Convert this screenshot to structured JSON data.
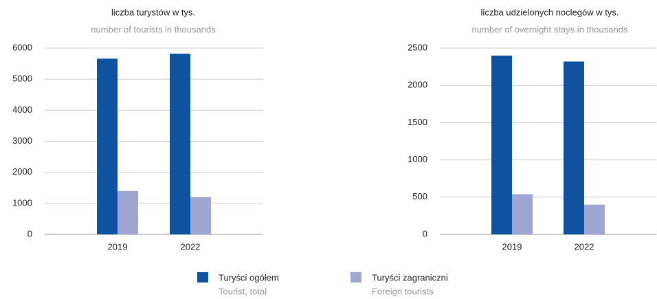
{
  "chart_data": [
    {
      "type": "bar",
      "title": "liczba turystów w tys.",
      "subtitle": "number of tourists in thousands",
      "categories": [
        "2019",
        "2022"
      ],
      "series": [
        {
          "name": "Turyści ogółem",
          "name_en": "Tourist, total",
          "color": "#0f52a0",
          "values": [
            5660,
            5820
          ]
        },
        {
          "name": "Turyści zagraniczni",
          "name_en": "Foreign tourists",
          "color": "#a0a6d2",
          "values": [
            1400,
            1200
          ]
        }
      ],
      "ylim": [
        0,
        6000
      ],
      "yticks": [
        0,
        1000,
        2000,
        3000,
        4000,
        5000,
        6000
      ],
      "grid": true
    },
    {
      "type": "bar",
      "title": "liczba udzielonych noclegów w tys.",
      "subtitle": "number of overnight stays in thousands",
      "categories": [
        "2019",
        "2022"
      ],
      "series": [
        {
          "name": "Turyści ogółem",
          "name_en": "Tourist, total",
          "color": "#0f52a0",
          "values": [
            2400,
            2320
          ]
        },
        {
          "name": "Turyści zagraniczni",
          "name_en": "Foreign tourists",
          "color": "#a0a6d2",
          "values": [
            540,
            400
          ]
        }
      ],
      "ylim": [
        0,
        2500
      ],
      "yticks": [
        0,
        500,
        1000,
        1500,
        2000,
        2500
      ],
      "grid": true
    }
  ]
}
